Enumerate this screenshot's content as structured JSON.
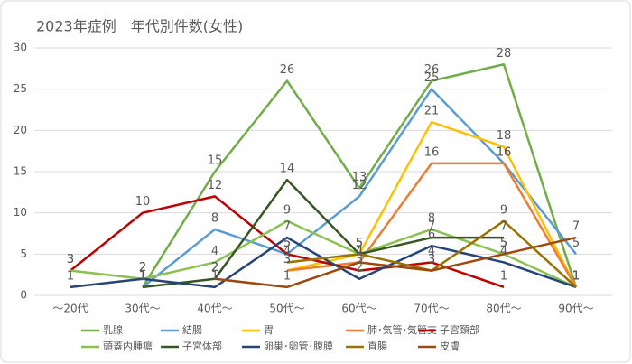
{
  "chart_data": {
    "type": "line",
    "title": "2023年症例　年代別件数(女性)",
    "categories": [
      "～20代",
      "30代～",
      "40代～",
      "50代～",
      "60代～",
      "70代～",
      "80代～",
      "90代～"
    ],
    "ylim": [
      0,
      30
    ],
    "yticks": [
      0,
      5,
      10,
      15,
      20,
      25,
      30
    ],
    "grid": true,
    "legend": "bottom",
    "data_labels": true,
    "series": [
      {
        "name": "乳腺",
        "color": "#70ad47",
        "values": [
          null,
          1,
          15,
          26,
          13,
          26,
          28,
          1
        ]
      },
      {
        "name": "結腸",
        "color": "#5b9bd5",
        "values": [
          null,
          1,
          8,
          5,
          12,
          25,
          16,
          5
        ]
      },
      {
        "name": "胃",
        "color": "#ffc000",
        "values": [
          null,
          null,
          null,
          3,
          5,
          21,
          18,
          1
        ]
      },
      {
        "name": "肺･気管･気管支",
        "color": "#ed7d31",
        "values": [
          null,
          null,
          null,
          3,
          4,
          16,
          16,
          1
        ]
      },
      {
        "name": "子宮頚部",
        "color": "#c00000",
        "values": [
          3,
          10,
          12,
          5,
          3,
          4,
          1,
          null
        ]
      },
      {
        "name": "頭蓋内腫瘍",
        "color": "#8cc152",
        "values": [
          3,
          2,
          4,
          9,
          5,
          8,
          5,
          1
        ]
      },
      {
        "name": "子宮体部",
        "color": "#375623",
        "values": [
          null,
          1,
          2,
          14,
          5,
          7,
          7,
          null
        ]
      },
      {
        "name": "卵巣･卵管･腹膜",
        "color": "#264478",
        "values": [
          1,
          2,
          1,
          7,
          2,
          6,
          4,
          1
        ]
      },
      {
        "name": "直腸",
        "color": "#997300",
        "values": [
          null,
          null,
          null,
          4,
          5,
          3,
          9,
          1
        ]
      },
      {
        "name": "皮膚",
        "color": "#9e480e",
        "values": [
          null,
          null,
          2,
          1,
          4,
          3,
          5,
          7
        ]
      }
    ]
  }
}
